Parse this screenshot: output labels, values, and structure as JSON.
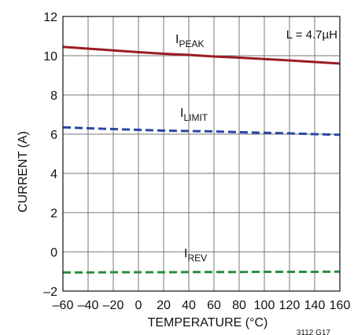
{
  "chart_data": {
    "type": "line",
    "xlabel": "TEMPERATURE (°C)",
    "ylabel": "CURRENT (A)",
    "xlim": [
      -60,
      160
    ],
    "ylim": [
      -2,
      12
    ],
    "x_ticks": [
      -60,
      -40,
      -20,
      0,
      20,
      40,
      60,
      80,
      100,
      120,
      140,
      160
    ],
    "x_tick_labels": [
      "–60",
      "–40",
      "–20",
      "0",
      "20",
      "40",
      "60",
      "80",
      "100",
      "120",
      "140",
      "160"
    ],
    "y_ticks": [
      -2,
      0,
      2,
      4,
      6,
      8,
      10,
      12
    ],
    "y_tick_labels": [
      "–2",
      "0",
      "2",
      "4",
      "6",
      "8",
      "10",
      "12"
    ],
    "grid": true,
    "annotation": "L = 4.7µH",
    "figure_id": "3112 G17",
    "series": [
      {
        "name": "PEAK",
        "label_main": "I",
        "label_sub": "PEAK",
        "color": "#9b1c24",
        "style": "solid",
        "x": [
          -60,
          -40,
          -20,
          0,
          20,
          40,
          60,
          80,
          100,
          120,
          140,
          160
        ],
        "y": [
          10.45,
          10.36,
          10.27,
          10.18,
          10.1,
          10.04,
          9.96,
          9.9,
          9.83,
          9.76,
          9.68,
          9.6
        ]
      },
      {
        "name": "LIMIT",
        "label_main": "I",
        "label_sub": "LIMIT",
        "color": "#2a46a4",
        "style": "dashed",
        "x": [
          -60,
          -40,
          -20,
          0,
          20,
          40,
          60,
          80,
          100,
          120,
          140,
          160
        ],
        "y": [
          6.35,
          6.3,
          6.26,
          6.22,
          6.18,
          6.16,
          6.14,
          6.1,
          6.07,
          6.04,
          6.0,
          5.97
        ]
      },
      {
        "name": "REV",
        "label_main": "I",
        "label_sub": "REV",
        "color": "#2a8c3e",
        "style": "dashed",
        "x": [
          -60,
          -40,
          -20,
          0,
          20,
          40,
          60,
          80,
          100,
          120,
          140,
          160
        ],
        "y": [
          -1.05,
          -1.05,
          -1.04,
          -1.04,
          -1.04,
          -1.03,
          -1.03,
          -1.03,
          -1.02,
          -1.02,
          -1.02,
          -1.01
        ]
      }
    ]
  }
}
